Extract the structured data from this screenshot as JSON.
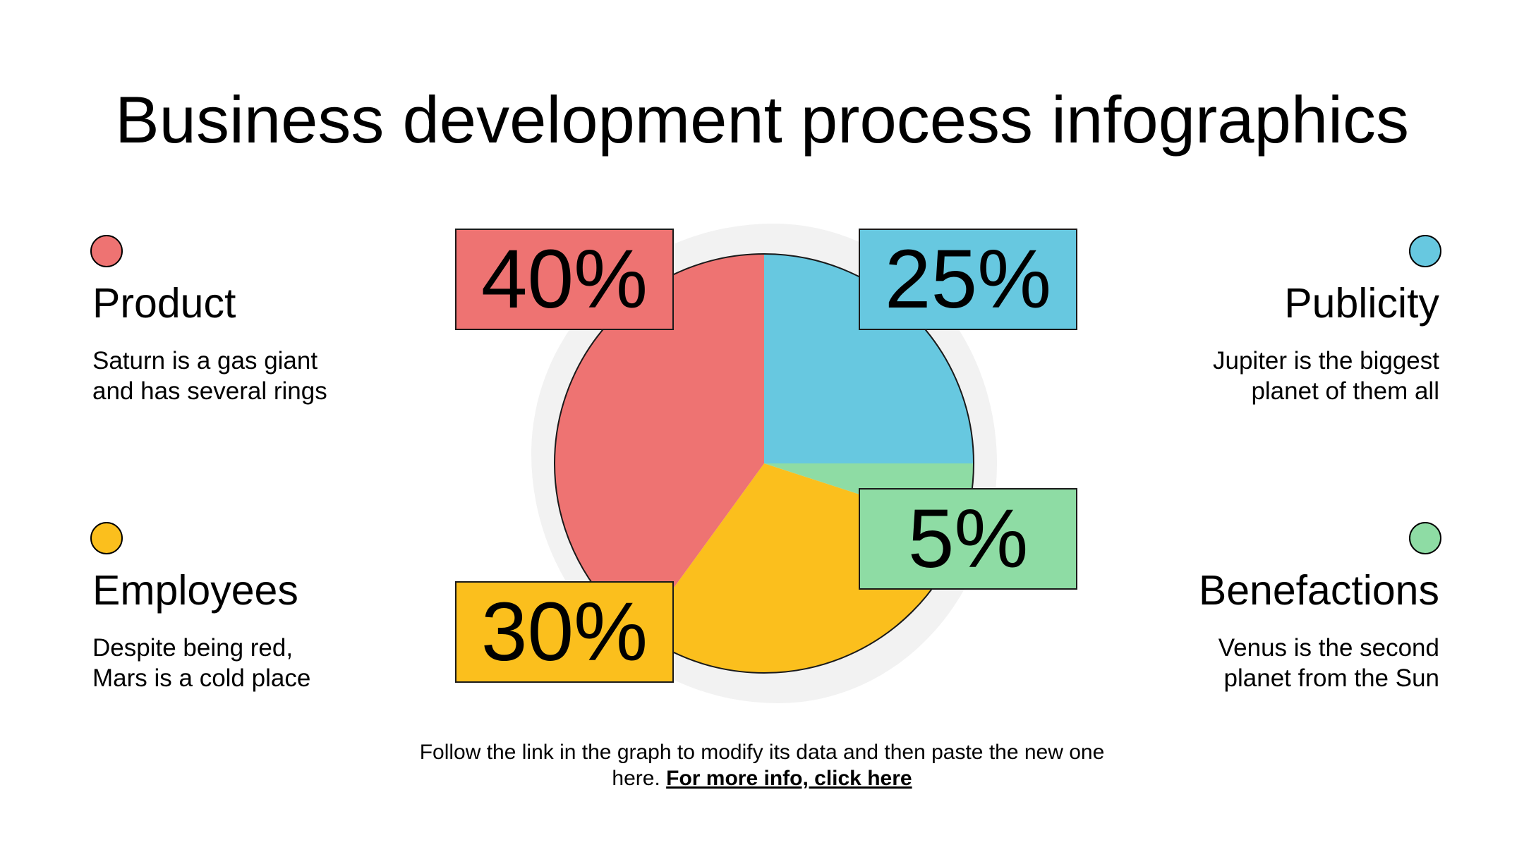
{
  "title": "Business development process infographics",
  "items": {
    "product": {
      "title": "Product",
      "desc_line1": "Saturn is a gas giant",
      "desc_line2": "and has several rings"
    },
    "publicity": {
      "title": "Publicity",
      "desc_line1": "Jupiter is the biggest",
      "desc_line2": "planet of them all"
    },
    "employees": {
      "title": "Employees",
      "desc_line1": "Despite being red,",
      "desc_line2": "Mars is a cold place"
    },
    "benefactions": {
      "title": "Benefactions",
      "desc_line1": "Venus is the second",
      "desc_line2": "planet from the Sun"
    }
  },
  "colors": {
    "product": "#ee7372",
    "publicity": "#67c8e0",
    "employees": "#fbbf1d",
    "benefactions": "#8edca4",
    "blob": "#f2f2f2"
  },
  "chart_data": {
    "type": "pie",
    "slices": [
      {
        "category": "Publicity",
        "value": 25,
        "label": "25%",
        "color": "#67c8e0"
      },
      {
        "category": "Benefactions",
        "value": 5,
        "label": "5%",
        "color": "#8edca4"
      },
      {
        "category": "Employees",
        "value": 30,
        "label": "30%",
        "color": "#fbbf1d"
      },
      {
        "category": "Product",
        "value": 40,
        "label": "40%",
        "color": "#ee7372"
      }
    ]
  },
  "footer": {
    "text": "Follow the link in the graph to modify its data and then paste the new one here.",
    "link": "For more info, click here"
  }
}
